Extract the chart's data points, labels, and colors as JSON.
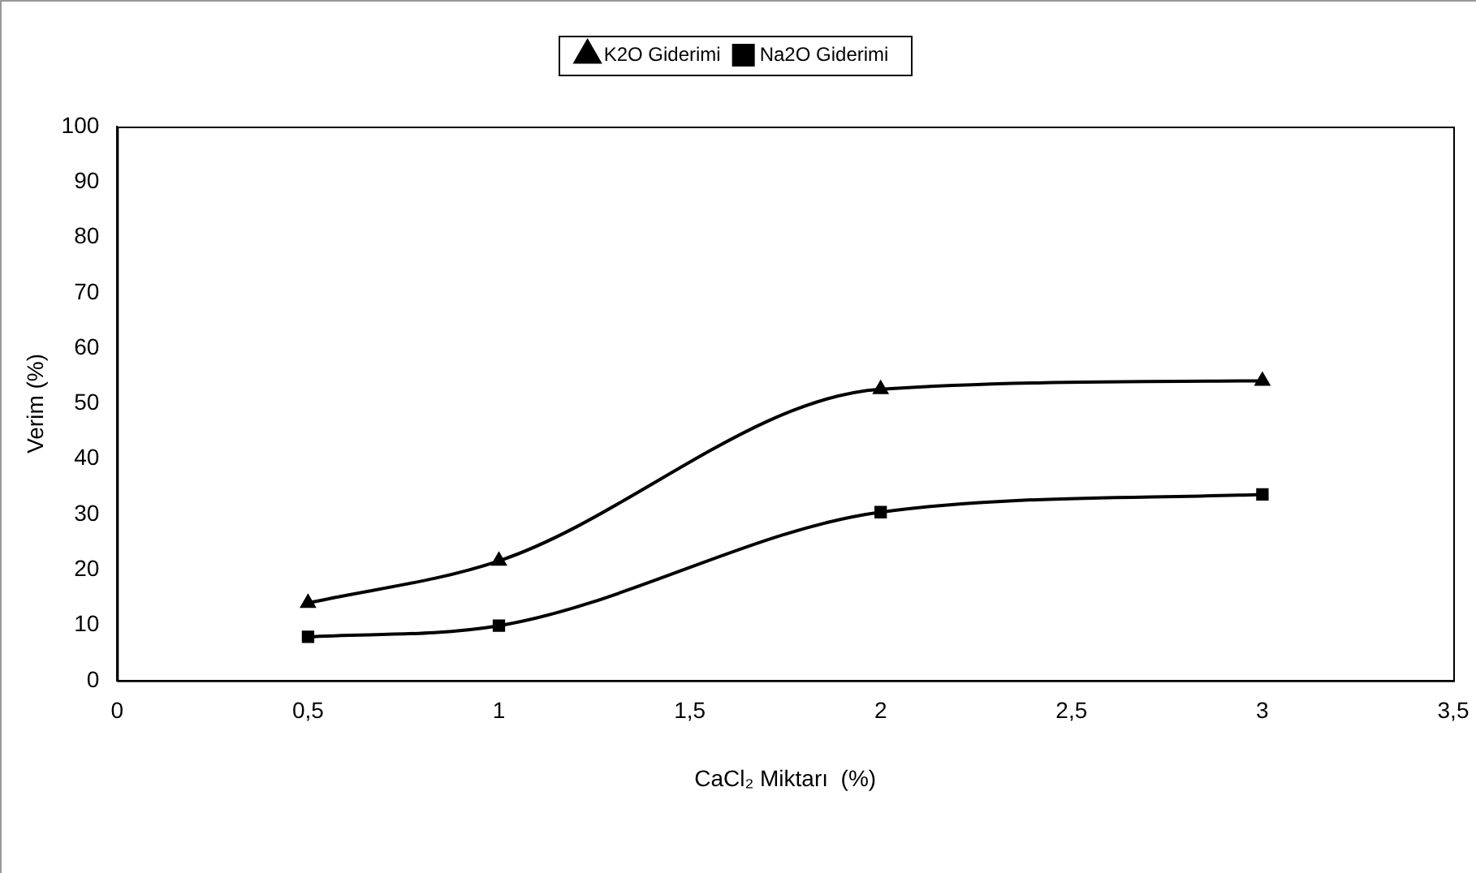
{
  "chart_data": {
    "type": "line",
    "xlabel": "CaCl₂ Miktarı  (%)",
    "ylabel": "Verim (%)",
    "x": [
      0.5,
      1,
      2,
      3
    ],
    "series": [
      {
        "name": "K2O Giderimi",
        "color": "#000000",
        "marker": "triangle",
        "values": [
          14.0,
          21.6,
          52.6,
          54.1
        ]
      },
      {
        "name": "Na2O Giderimi",
        "color": "#000000",
        "marker": "square",
        "values": [
          7.9,
          9.9,
          30.4,
          33.6
        ]
      }
    ],
    "xlim": [
      0,
      3.5
    ],
    "xticks": [
      0,
      {
        "value": 0.5,
        "label": "0,5"
      },
      1,
      {
        "value": 1.5,
        "label": "1,5"
      },
      2,
      {
        "value": 2.5,
        "label": "2,5"
      },
      3,
      {
        "value": 3.5,
        "label": "3,5"
      }
    ],
    "ylim": [
      0,
      100
    ],
    "yticks": [
      0,
      10,
      20,
      30,
      40,
      50,
      60,
      70,
      80,
      90,
      100
    ],
    "grid": false,
    "legend": "top",
    "line_style": "solid"
  }
}
